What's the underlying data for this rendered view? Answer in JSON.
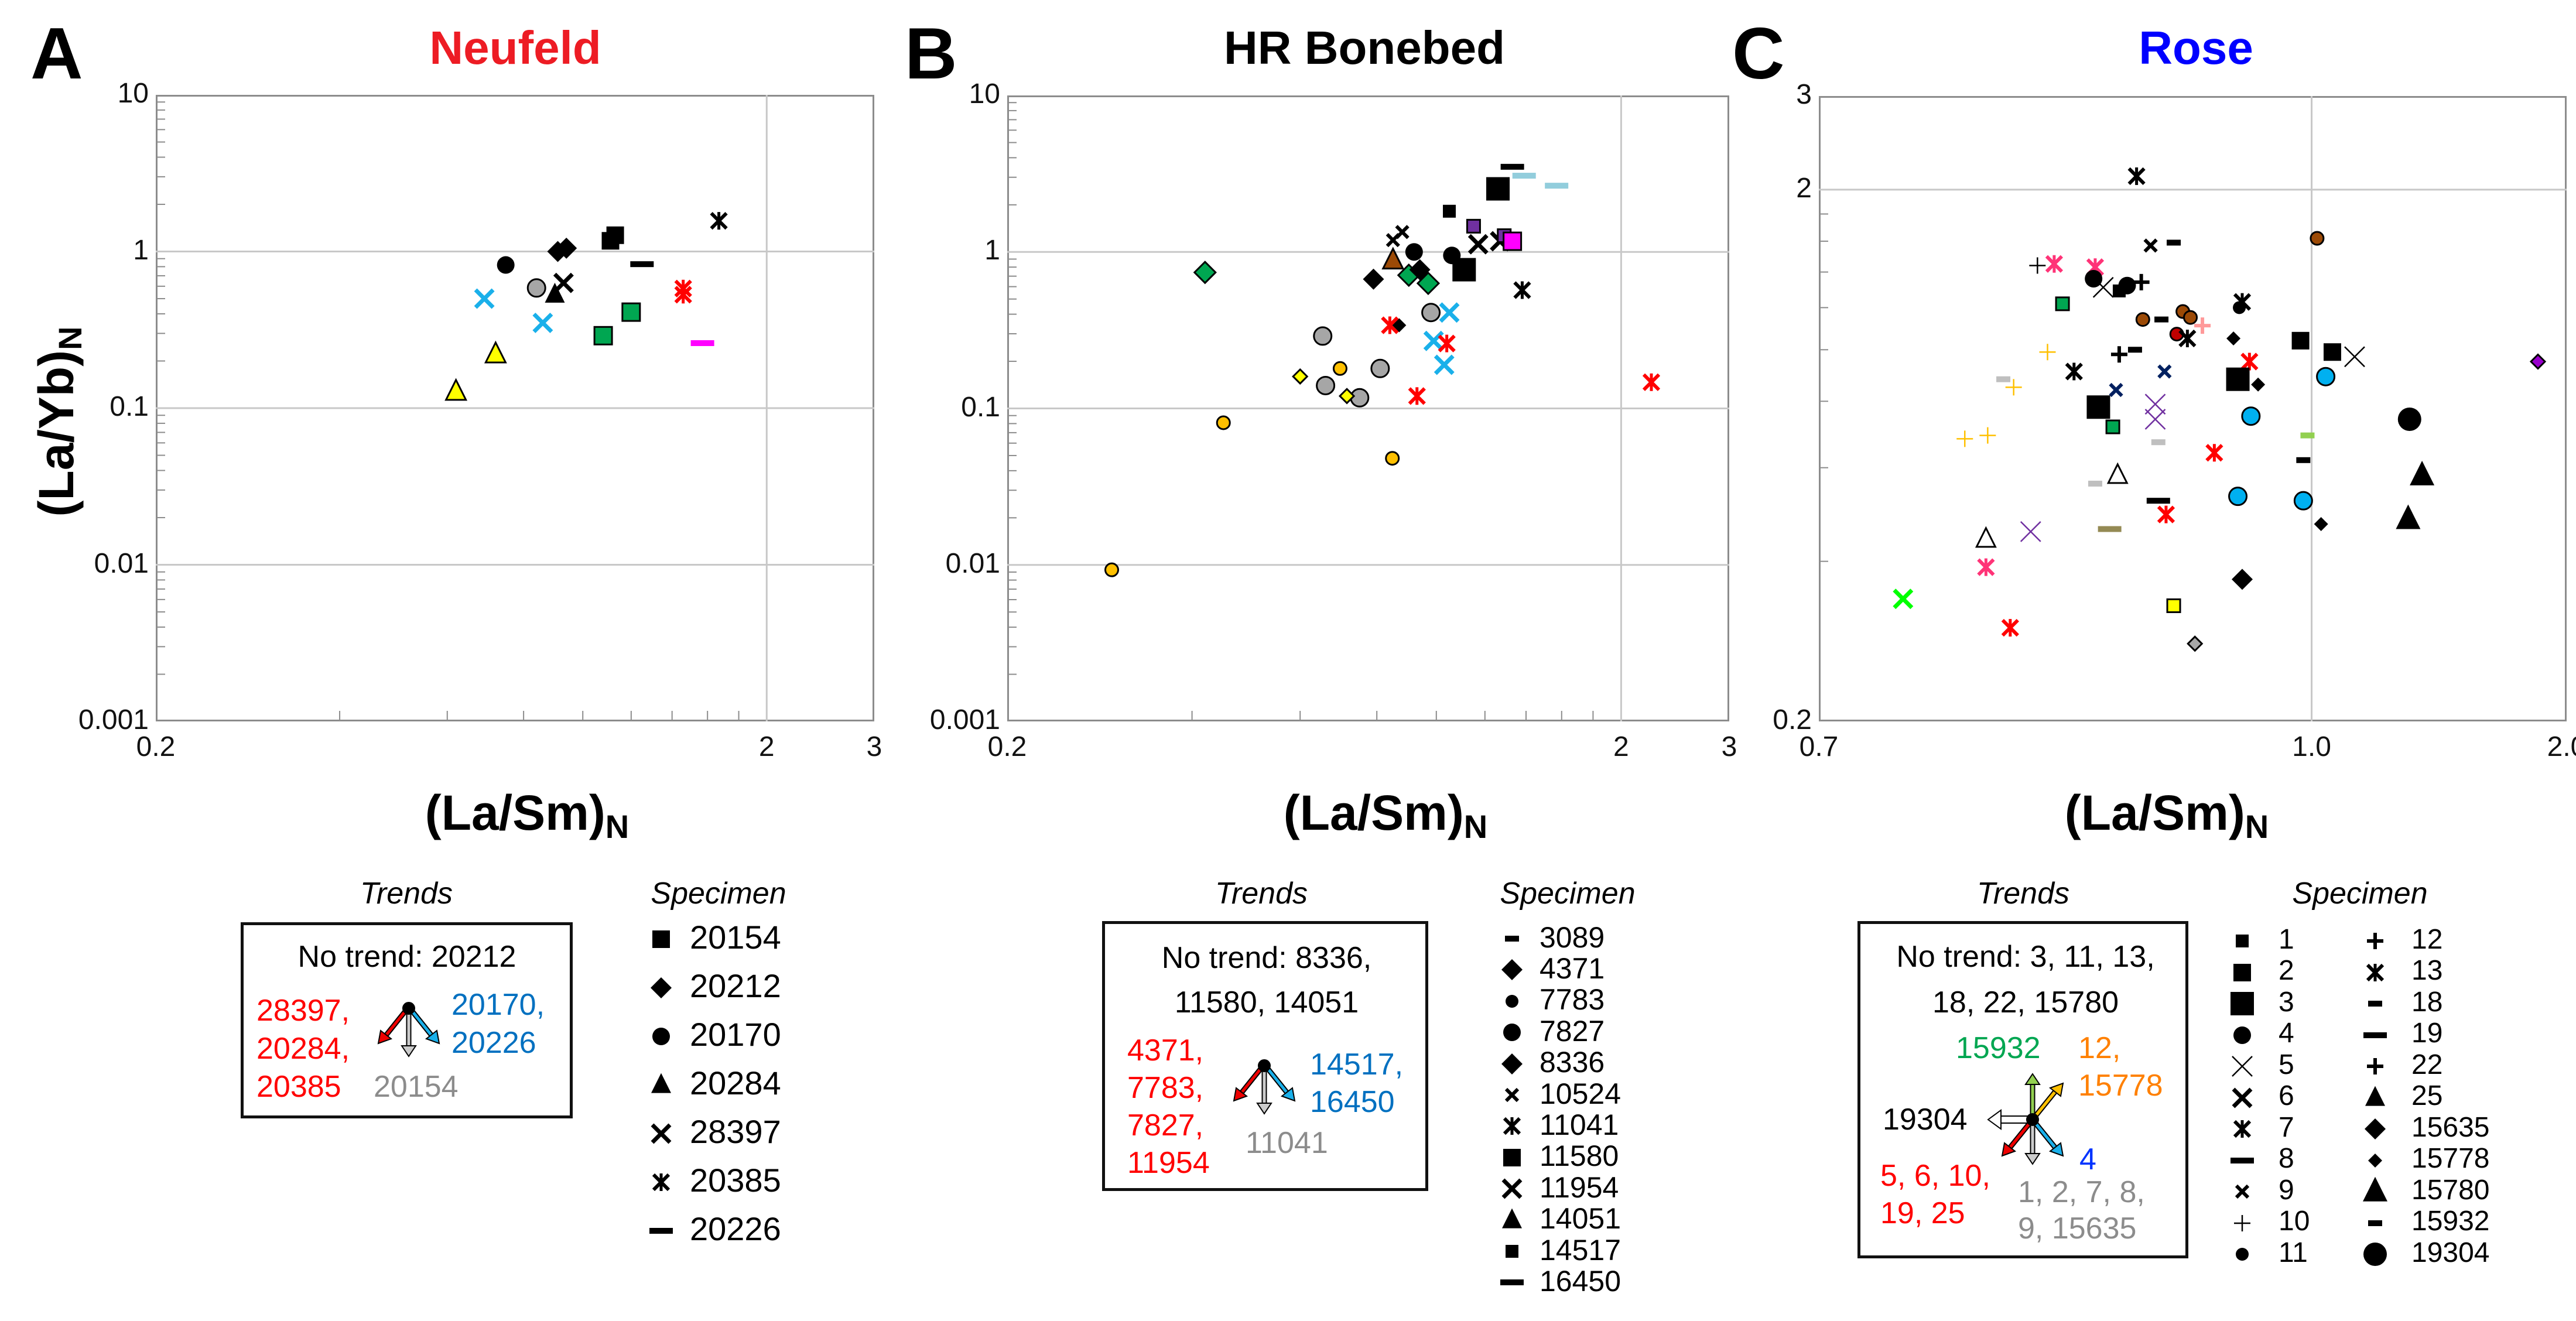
{
  "panels": [
    {
      "letter": "A",
      "title": "Neufeld",
      "title_color": "#ed1c24"
    },
    {
      "letter": "B",
      "title": "HR Bonebed",
      "title_color": "#000000"
    },
    {
      "letter": "C",
      "title": "Rose",
      "title_color": "#0000ff"
    }
  ],
  "axis_labels": {
    "y_main": "(La/Yb)",
    "y_sub": "N",
    "x_main": "(La/Sm)",
    "x_sub": "N"
  },
  "legends": [
    {
      "trends_title": "Trends",
      "specimen_title": "Specimen",
      "no_trend": [
        "No trend: 20212"
      ],
      "decrease_both": [
        "28397,",
        "20284,",
        "20385"
      ],
      "increase_x": [
        "20170,",
        "20226"
      ],
      "decrease_y": [
        "20154"
      ],
      "specimens": [
        {
          "label": "20154",
          "marker": "sq"
        },
        {
          "label": "20212",
          "marker": "di"
        },
        {
          "label": "20170",
          "marker": "ci"
        },
        {
          "label": "20284",
          "marker": "tri"
        },
        {
          "label": "28397",
          "marker": "X"
        },
        {
          "label": "20385",
          "marker": "ast"
        },
        {
          "label": "20226",
          "marker": "dash"
        }
      ]
    },
    {
      "trends_title": "Trends",
      "specimen_title": "Specimen",
      "no_trend": [
        "No trend: 8336,",
        "11580, 14051"
      ],
      "decrease_both": [
        "4371,",
        "7783,",
        "7827,",
        "11954"
      ],
      "increase_x": [
        "14517,",
        "16450"
      ],
      "decrease_y": [
        "11041"
      ],
      "specimens": [
        {
          "label": "3089",
          "marker": "dashS"
        },
        {
          "label": "4371",
          "marker": "di"
        },
        {
          "label": "7783",
          "marker": "ciS"
        },
        {
          "label": "7827",
          "marker": "ci"
        },
        {
          "label": "8336",
          "marker": "di"
        },
        {
          "label": "10524",
          "marker": "xS"
        },
        {
          "label": "11041",
          "marker": "ast"
        },
        {
          "label": "11580",
          "marker": "sq"
        },
        {
          "label": "11954",
          "marker": "X"
        },
        {
          "label": "14051",
          "marker": "tri"
        },
        {
          "label": "14517",
          "marker": "sqS"
        },
        {
          "label": "16450",
          "marker": "dash"
        }
      ]
    },
    {
      "trends_title": "Trends",
      "specimen_title": "Specimen",
      "no_trend": [
        "No trend: 3, 11, 13,",
        "18, 22, 15780"
      ],
      "increase_y": [
        "15932"
      ],
      "increase_both": [
        "12,",
        "15778"
      ],
      "decrease_x": [
        "19304"
      ],
      "increase_x": [
        "4"
      ],
      "decrease_both": [
        "5, 6, 10,",
        "19, 25"
      ],
      "decrease_y": [
        "1, 2, 7, 8,",
        "9, 15635"
      ],
      "specimens": [
        {
          "label": "1",
          "marker": "sqS"
        },
        {
          "label": "2",
          "marker": "sq"
        },
        {
          "label": "3",
          "marker": "sqL"
        },
        {
          "label": "4",
          "marker": "ci"
        },
        {
          "label": "5",
          "marker": "xT"
        },
        {
          "label": "6",
          "marker": "X"
        },
        {
          "label": "7",
          "marker": "ast"
        },
        {
          "label": "8",
          "marker": "dash"
        },
        {
          "label": "9",
          "marker": "xS"
        },
        {
          "label": "10",
          "marker": "plusT"
        },
        {
          "label": "11",
          "marker": "ciS"
        },
        {
          "label": "12",
          "marker": "plus"
        },
        {
          "label": "13",
          "marker": "ast"
        },
        {
          "label": "18",
          "marker": "dashS"
        },
        {
          "label": "19",
          "marker": "dash"
        },
        {
          "label": "22",
          "marker": "plus"
        },
        {
          "label": "25",
          "marker": "tri"
        },
        {
          "label": "15635",
          "marker": "di"
        },
        {
          "label": "15778",
          "marker": "diS"
        },
        {
          "label": "15780",
          "marker": "triL"
        },
        {
          "label": "15932",
          "marker": "dashS"
        },
        {
          "label": "19304",
          "marker": "ciL"
        }
      ]
    }
  ],
  "chart_data": [
    {
      "type": "scatter",
      "title": "Neufeld",
      "xlabel": "(La/Sm)N",
      "ylabel": "(La/Yb)N",
      "xscale": "log",
      "yscale": "log",
      "xlim": [
        0.2,
        3
      ],
      "ylim": [
        0.001,
        10
      ],
      "xticks": [
        "0.2",
        "2",
        "3"
      ],
      "yticks": [
        "10",
        "1",
        "0.1",
        "0.01",
        "0.001"
      ],
      "grid": true,
      "points": [
        [
          0.748,
          0.82,
          "ci",
          "#000000"
        ],
        [
          0.84,
          0.585,
          "ci",
          "#a6a6a6"
        ],
        [
          0.91,
          1.0,
          "di",
          "#000000"
        ],
        [
          0.94,
          1.05,
          "di",
          "#000000"
        ],
        [
          0.93,
          0.63,
          "X",
          "#000000"
        ],
        [
          0.9,
          0.53,
          "tri",
          "#000000"
        ],
        [
          0.69,
          0.5,
          "X",
          "#1ab0ea"
        ],
        [
          0.86,
          0.35,
          "X",
          "#1ab0ea"
        ],
        [
          0.72,
          0.22,
          "tri",
          "#ffff00"
        ],
        [
          0.62,
          0.127,
          "tri",
          "#ffff00"
        ],
        [
          1.11,
          1.17,
          "sq",
          "#000000"
        ],
        [
          1.13,
          1.27,
          "sq",
          "#000000"
        ],
        [
          1.25,
          0.83,
          "dash",
          "#000000"
        ],
        [
          1.08,
          0.29,
          "sq",
          "#00a651"
        ],
        [
          1.2,
          0.41,
          "sq",
          "#00a651"
        ],
        [
          1.46,
          0.58,
          "ast",
          "#ff0000"
        ],
        [
          1.46,
          0.53,
          "ast",
          "#ff0000"
        ],
        [
          1.67,
          1.57,
          "ast",
          "#000000"
        ],
        [
          1.57,
          0.26,
          "dash",
          "#ff00ff"
        ]
      ]
    },
    {
      "type": "scatter",
      "title": "HR Bonebed",
      "xlabel": "(La/Sm)N",
      "ylabel": "(La/Yb)N",
      "xscale": "log",
      "yscale": "log",
      "xlim": [
        0.2,
        3
      ],
      "ylim": [
        0.001,
        10
      ],
      "xticks": [
        "0.2",
        "2",
        "3"
      ],
      "yticks": [
        "10",
        "1",
        "0.1",
        "0.01",
        "0.001"
      ],
      "grid": true,
      "points": [
        [
          0.296,
          0.0093,
          "ciS",
          "#ffc000"
        ],
        [
          0.45,
          0.081,
          "ciS",
          "#ffc000"
        ],
        [
          0.697,
          0.18,
          "ciS",
          "#ffc000"
        ],
        [
          0.848,
          0.048,
          "ciS",
          "#ffc000"
        ],
        [
          0.42,
          0.74,
          "di",
          "#00a651"
        ],
        [
          0.902,
          0.71,
          "di",
          "#00a651"
        ],
        [
          0.97,
          0.63,
          "di",
          "#00a651"
        ],
        [
          0.653,
          0.29,
          "ci",
          "#a6a6a6"
        ],
        [
          0.66,
          0.14,
          "ci",
          "#a6a6a6"
        ],
        [
          0.75,
          0.117,
          "ci",
          "#a6a6a6"
        ],
        [
          0.81,
          0.18,
          "ci",
          "#a6a6a6"
        ],
        [
          0.98,
          0.41,
          "ci",
          "#a6a6a6"
        ],
        [
          0.6,
          0.16,
          "diS",
          "#ffff00"
        ],
        [
          0.715,
          0.12,
          "diS",
          "#ffff00"
        ],
        [
          0.79,
          0.67,
          "di",
          "#000000"
        ],
        [
          0.94,
          0.77,
          "di",
          "#000000"
        ],
        [
          0.87,
          0.34,
          "diS",
          "#000000"
        ],
        [
          0.85,
          0.88,
          "tri",
          "#9c4a06"
        ],
        [
          0.85,
          1.19,
          "xS",
          "#000000"
        ],
        [
          0.88,
          1.34,
          "xS",
          "#000000"
        ],
        [
          1.17,
          1.12,
          "X",
          "#000000"
        ],
        [
          1.27,
          1.17,
          "X",
          "#000000"
        ],
        [
          0.92,
          1.0,
          "ci",
          "#000000"
        ],
        [
          1.06,
          0.95,
          "ci",
          "#000000"
        ],
        [
          1.11,
          0.77,
          "sqL",
          "#000000"
        ],
        [
          1.26,
          2.53,
          "sqL",
          "#000000"
        ],
        [
          1.05,
          1.82,
          "sqS",
          "#000000"
        ],
        [
          1.15,
          1.46,
          "sqS",
          "#7030a0"
        ],
        [
          1.29,
          1.27,
          "sqS",
          "#7030a0"
        ],
        [
          1.33,
          1.17,
          "sq",
          "#ff00ff"
        ],
        [
          1.33,
          3.5,
          "dash",
          "#000000"
        ],
        [
          1.39,
          3.07,
          "dash",
          "#92cddc"
        ],
        [
          1.57,
          2.65,
          "dash",
          "#92cddc"
        ],
        [
          1.38,
          0.57,
          "ast",
          "#000000"
        ],
        [
          1.05,
          0.41,
          "X",
          "#1ab0ea"
        ],
        [
          0.99,
          0.27,
          "X",
          "#1ab0ea"
        ],
        [
          1.03,
          0.19,
          "X",
          "#1ab0ea"
        ],
        [
          0.84,
          0.34,
          "ast",
          "#ff0000"
        ],
        [
          1.04,
          0.26,
          "ast",
          "#ff0000"
        ],
        [
          0.93,
          0.12,
          "ast",
          "#ff0000"
        ],
        [
          2.24,
          0.147,
          "ast",
          "#ff0000"
        ]
      ]
    },
    {
      "type": "scatter",
      "title": "Rose",
      "xlabel": "(La/Sm)N",
      "ylabel": "(La/Yb)N",
      "xscale": "log",
      "yscale": "log",
      "xlim": [
        0.7,
        2.0
      ],
      "ylim": [
        0.2,
        3
      ],
      "xticks": [
        "0.7",
        "1.0",
        "2.0"
      ],
      "yticks": [
        "3",
        "2",
        "0.2"
      ],
      "grid": true,
      "points": [
        [
          0.881,
          2.12,
          "ast",
          "#000000"
        ],
        [
          1.015,
          1.62,
          "ciS",
          "#9c4a06"
        ],
        [
          0.89,
          1.57,
          "xS",
          "#000000"
        ],
        [
          0.905,
          1.59,
          "dashS",
          "#000000"
        ],
        [
          0.83,
          1.45,
          "ast",
          "#ff3377"
        ],
        [
          0.82,
          1.44,
          "plusT",
          "#000000"
        ],
        [
          0.855,
          1.43,
          "ast",
          "#ff3377"
        ],
        [
          0.854,
          1.36,
          "ci",
          "#000000"
        ],
        [
          0.86,
          1.31,
          "xT",
          "#000000"
        ],
        [
          0.87,
          1.29,
          "sqS",
          "#000000"
        ],
        [
          0.875,
          1.32,
          "ci",
          "#000000"
        ],
        [
          0.884,
          1.34,
          "plus",
          "#000000"
        ],
        [
          0.835,
          1.22,
          "sqS",
          "#00a651"
        ],
        [
          0.949,
          1.2,
          "ciS",
          "#000000"
        ],
        [
          0.951,
          1.23,
          "ast",
          "#000000"
        ],
        [
          0.885,
          1.14,
          "ciS",
          "#9c4a06"
        ],
        [
          0.911,
          1.18,
          "ciS",
          "#9c4a06"
        ],
        [
          0.916,
          1.15,
          "ciS",
          "#9c4a06"
        ],
        [
          0.897,
          1.14,
          "dashS",
          "#000000"
        ],
        [
          0.907,
          1.07,
          "ciS",
          "#c00000"
        ],
        [
          0.914,
          1.05,
          "ast",
          "#000000"
        ],
        [
          0.924,
          1.11,
          "plus",
          "#ff9999"
        ],
        [
          0.945,
          1.05,
          "diS",
          "#000000"
        ],
        [
          0.992,
          1.04,
          "sq",
          "#000000"
        ],
        [
          1.058,
          0.99,
          "sq",
          "#000000"
        ],
        [
          1.124,
          0.97,
          "xT",
          "#000000"
        ],
        [
          1.85,
          0.95,
          "diS",
          "#9900cc"
        ],
        [
          0.956,
          0.95,
          "ast",
          "#ff0000"
        ],
        [
          0.826,
          0.99,
          "plusT",
          "#ffc000"
        ],
        [
          0.87,
          0.98,
          "plus",
          "#000000"
        ],
        [
          0.88,
          1.0,
          "dashS",
          "#000000"
        ],
        [
          0.842,
          0.91,
          "ast",
          "#000000"
        ],
        [
          0.899,
          0.91,
          "xS",
          "#002060"
        ],
        [
          0.868,
          0.84,
          "xS",
          "#002060"
        ],
        [
          0.8,
          0.88,
          "dashS",
          "#bfbfbf"
        ],
        [
          0.806,
          0.85,
          "plusT",
          "#ffc000"
        ],
        [
          0.948,
          0.88,
          "sqL",
          "#000000"
        ],
        [
          0.962,
          0.86,
          "diS",
          "#000000"
        ],
        [
          1.039,
          0.89,
          "ci",
          "#00b0f0"
        ],
        [
          0.857,
          0.78,
          "sqL",
          "#000000"
        ],
        [
          0.893,
          0.79,
          "xT",
          "#7030a0"
        ],
        [
          0.893,
          0.74,
          "xT",
          "#7030a0"
        ],
        [
          0.957,
          0.75,
          "ci",
          "#00b0f0"
        ],
        [
          1.305,
          0.74,
          "ciL",
          "#000000"
        ],
        [
          0.866,
          0.716,
          "sqS",
          "#00a651"
        ],
        [
          0.778,
          0.68,
          "plusT",
          "#ffc000"
        ],
        [
          0.791,
          0.69,
          "plusT",
          "#ffc000"
        ],
        [
          0.895,
          0.67,
          "dashS",
          "#bfbfbf"
        ],
        [
          0.997,
          0.69,
          "dashS",
          "#92d050"
        ],
        [
          0.932,
          0.64,
          "ast",
          "#ff0000"
        ],
        [
          0.994,
          0.62,
          "dashS",
          "#000000"
        ],
        [
          1.35,
          0.58,
          "triL",
          "#000000"
        ],
        [
          0.869,
          0.58,
          "triO",
          "#ffffff"
        ],
        [
          0.855,
          0.56,
          "dashS",
          "#bfbfbf"
        ],
        [
          0.948,
          0.53,
          "ci",
          "#00b0f0"
        ],
        [
          0.994,
          0.52,
          "ci",
          "#00b0f0"
        ],
        [
          0.895,
          0.52,
          "dash",
          "#000000"
        ],
        [
          0.9,
          0.49,
          "ast",
          "#ff0000"
        ],
        [
          1.3,
          0.48,
          "triL",
          "#000000"
        ],
        [
          1.026,
          0.47,
          "diS",
          "#000000"
        ],
        [
          0.864,
          0.46,
          "dash",
          "#948a54"
        ],
        [
          0.816,
          0.455,
          "xT",
          "#7030a0"
        ],
        [
          0.79,
          0.44,
          "triO",
          "#ffffff"
        ],
        [
          0.79,
          0.39,
          "ast",
          "#ff3377"
        ],
        [
          0.951,
          0.37,
          "di",
          "#000000"
        ],
        [
          0.744,
          0.34,
          "X",
          "#00ff00"
        ],
        [
          0.905,
          0.33,
          "sqS",
          "#ffff00"
        ],
        [
          0.804,
          0.3,
          "ast",
          "#ff0000"
        ],
        [
          0.919,
          0.28,
          "diS",
          "#a6a6a6"
        ]
      ]
    }
  ]
}
